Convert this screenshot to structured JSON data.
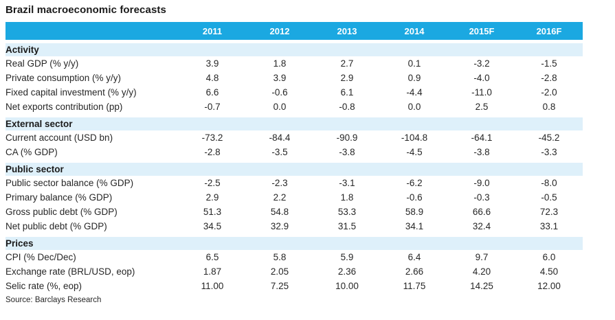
{
  "title": "Brazil macroeconomic forecasts",
  "source": "Source: Barclays Research",
  "colors": {
    "header_bg": "#1BA8E1",
    "section_bg": "#DEF0FA",
    "header_text": "#FFFFFF",
    "body_text": "#262626",
    "title_text": "#1A1A1A"
  },
  "table": {
    "columns": [
      "2011",
      "2012",
      "2013",
      "2014",
      "2015F",
      "2016F"
    ],
    "sections": [
      {
        "name": "Activity",
        "rows": [
          {
            "label": "Real GDP (% y/y)",
            "values": [
              "3.9",
              "1.8",
              "2.7",
              "0.1",
              "-3.2",
              "-1.5"
            ]
          },
          {
            "label": "Private consumption (% y/y)",
            "values": [
              "4.8",
              "3.9",
              "2.9",
              "0.9",
              "-4.0",
              "-2.8"
            ]
          },
          {
            "label": "Fixed capital investment (% y/y)",
            "values": [
              "6.6",
              "-0.6",
              "6.1",
              "-4.4",
              "-11.0",
              "-2.0"
            ]
          },
          {
            "label": "Net exports contribution (pp)",
            "values": [
              "-0.7",
              "0.0",
              "-0.8",
              "0.0",
              "2.5",
              "0.8"
            ]
          }
        ]
      },
      {
        "name": "External sector",
        "rows": [
          {
            "label": "Current account (USD bn)",
            "values": [
              "-73.2",
              "-84.4",
              "-90.9",
              "-104.8",
              "-64.1",
              "-45.2"
            ]
          },
          {
            "label": "CA (% GDP)",
            "values": [
              "-2.8",
              "-3.5",
              "-3.8",
              "-4.5",
              "-3.8",
              "-3.3"
            ]
          }
        ]
      },
      {
        "name": "Public sector",
        "rows": [
          {
            "label": "Public sector balance (% GDP)",
            "values": [
              "-2.5",
              "-2.3",
              "-3.1",
              "-6.2",
              "-9.0",
              "-8.0"
            ]
          },
          {
            "label": "Primary balance (% GDP)",
            "values": [
              "2.9",
              "2.2",
              "1.8",
              "-0.6",
              "-0.3",
              "-0.5"
            ]
          },
          {
            "label": "Gross public debt (% GDP)",
            "values": [
              "51.3",
              "54.8",
              "53.3",
              "58.9",
              "66.6",
              "72.3"
            ]
          },
          {
            "label": "Net public debt (% GDP)",
            "values": [
              "34.5",
              "32.9",
              "31.5",
              "34.1",
              "32.4",
              "33.1"
            ]
          }
        ]
      },
      {
        "name": "Prices",
        "rows": [
          {
            "label": "CPI (% Dec/Dec)",
            "values": [
              "6.5",
              "5.8",
              "5.9",
              "6.4",
              "9.7",
              "6.0"
            ]
          },
          {
            "label": "Exchange rate (BRL/USD, eop)",
            "values": [
              "1.87",
              "2.05",
              "2.36",
              "2.66",
              "4.20",
              "4.50"
            ]
          },
          {
            "label": "Selic rate (%, eop)",
            "values": [
              "11.00",
              "7.25",
              "10.00",
              "11.75",
              "14.25",
              "12.00"
            ]
          }
        ]
      }
    ]
  }
}
